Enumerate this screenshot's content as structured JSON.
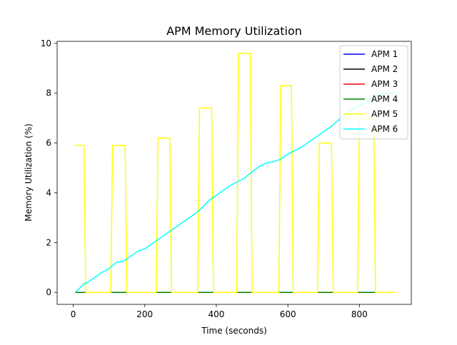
{
  "chart_data": {
    "type": "line",
    "title": "APM Memory Utilization",
    "xlabel": "Time (seconds)",
    "ylabel": "Memory Utilization (%)",
    "xlim": [
      -45,
      945
    ],
    "ylim": [
      -0.48,
      10.08
    ],
    "xticks": [
      0,
      200,
      400,
      600,
      800
    ],
    "yticks": [
      0,
      2,
      4,
      6,
      8,
      10
    ],
    "grid": false,
    "legend_position": "upper-right",
    "series": [
      {
        "name": "APM 1",
        "color": "#0000ff",
        "x": [
          5,
          900
        ],
        "y": [
          0,
          0
        ]
      },
      {
        "name": "APM 2",
        "color": "#000000",
        "x": [
          5,
          900
        ],
        "y": [
          0,
          0
        ]
      },
      {
        "name": "APM 3",
        "color": "#ff0000",
        "x": [
          5,
          900
        ],
        "y": [
          0,
          0
        ]
      },
      {
        "name": "APM 4",
        "color": "#008000",
        "x": [
          5,
          900
        ],
        "y": [
          0,
          0
        ]
      },
      {
        "name": "APM 5",
        "color": "#ffff00",
        "x": [
          5,
          30,
          35,
          105,
          110,
          145,
          150,
          232,
          237,
          270,
          275,
          348,
          353,
          387,
          392,
          457,
          462,
          495,
          500,
          575,
          580,
          610,
          615,
          683,
          688,
          722,
          727,
          795,
          800,
          840,
          845,
          900
        ],
        "y": [
          5.9,
          5.9,
          0,
          0,
          5.9,
          5.9,
          0,
          0,
          6.2,
          6.2,
          0,
          0,
          7.4,
          7.4,
          0,
          0,
          9.6,
          9.6,
          0,
          0,
          8.3,
          8.3,
          0,
          0,
          6.0,
          6.0,
          0,
          0,
          7.0,
          7.0,
          0,
          0
        ]
      },
      {
        "name": "APM 6",
        "color": "#00ffff",
        "x": [
          5,
          10,
          20,
          30,
          40,
          60,
          80,
          100,
          120,
          140,
          160,
          180,
          200,
          220,
          240,
          260,
          280,
          300,
          320,
          340,
          360,
          380,
          400,
          420,
          440,
          460,
          480,
          500,
          520,
          540,
          560,
          580,
          600,
          620,
          640,
          660,
          680,
          700,
          720,
          740,
          760,
          780,
          800,
          820,
          840,
          860,
          880,
          900
        ],
        "y": [
          0,
          0.05,
          0.2,
          0.35,
          0.4,
          0.6,
          0.8,
          0.95,
          1.2,
          1.25,
          1.45,
          1.65,
          1.75,
          1.95,
          2.15,
          2.35,
          2.55,
          2.75,
          2.95,
          3.15,
          3.4,
          3.7,
          3.9,
          4.1,
          4.3,
          4.45,
          4.6,
          4.85,
          5.05,
          5.2,
          5.25,
          5.35,
          5.55,
          5.7,
          5.85,
          6.05,
          6.25,
          6.45,
          6.65,
          6.9,
          7.15,
          7.35,
          7.5,
          7.65,
          7.85,
          7.95,
          8.0,
          8.0
        ]
      }
    ]
  }
}
